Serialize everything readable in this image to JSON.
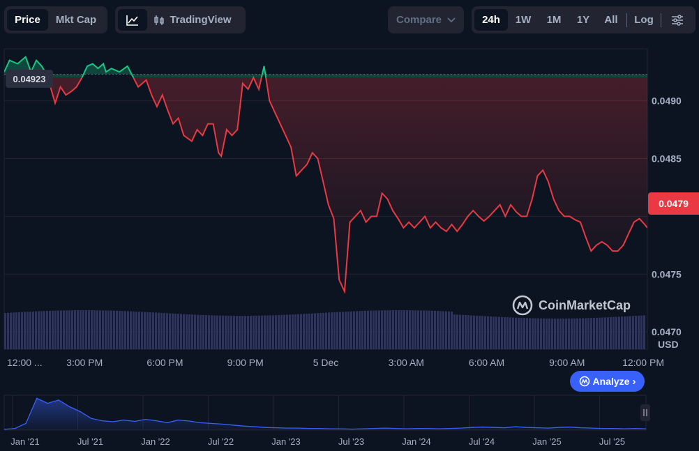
{
  "toolbar": {
    "tabs": [
      "Price",
      "Mkt Cap"
    ],
    "active_tab": "Price",
    "tradingview_label": "TradingView",
    "compare_label": "Compare",
    "ranges": [
      "24h",
      "1W",
      "1M",
      "1Y",
      "All"
    ],
    "active_range": "24h",
    "log_label": "Log"
  },
  "badges": {
    "current_price": "0.0479",
    "reference_price": "0.04923"
  },
  "watermark": "CoinMarketCap",
  "analyze_label": "Analyze",
  "currency_label": "USD",
  "colors": {
    "background": "#0d1421",
    "up": "#16c784",
    "down": "#ea3943",
    "accent": "#3861fb",
    "volume": "#2e3558"
  },
  "chart_data": {
    "type": "line",
    "ylim": [
      0.04685,
      0.04945
    ],
    "yticks": [
      0.049,
      0.0485,
      0.048,
      0.0475,
      0.047
    ],
    "ytick_labels": [
      "0.0490",
      "0.0485",
      "",
      "0.0475",
      "0.0470"
    ],
    "xtick_labels": [
      "12:00 ...",
      "3:00 PM",
      "6:00 PM",
      "9:00 PM",
      "5 Dec",
      "3:00 AM",
      "6:00 AM",
      "9:00 AM",
      "12:00 PM"
    ],
    "xtick_hours": [
      0,
      3,
      6,
      9,
      12,
      15,
      18,
      21,
      24
    ],
    "reference_price": 0.04923,
    "current_price": 0.0479,
    "series": [
      {
        "x_hours": [
          0.0,
          0.2,
          0.5,
          0.8,
          1.0,
          1.2,
          1.4,
          1.6,
          1.9,
          2.1,
          2.3,
          2.5,
          2.7,
          2.9,
          3.1,
          3.3,
          3.5,
          3.7,
          3.8,
          4.0,
          4.3,
          4.6,
          5.0,
          5.3,
          5.5,
          5.7,
          5.9,
          6.1,
          6.3,
          6.5,
          6.7,
          7.0,
          7.2,
          7.4,
          7.6,
          7.8,
          8.0,
          8.1,
          8.3,
          8.5,
          8.7,
          8.9,
          9.1,
          9.3,
          9.5,
          9.7,
          9.9,
          10.1,
          10.3,
          10.5,
          10.7,
          10.9,
          11.1,
          11.3,
          11.5,
          11.7,
          11.9,
          12.1,
          12.3,
          12.5,
          12.7,
          12.9,
          13.1,
          13.3,
          13.5,
          13.7,
          13.9,
          14.1,
          14.3,
          14.5,
          14.7,
          14.9,
          15.1,
          15.3,
          15.5,
          15.7,
          15.9,
          16.1,
          16.3,
          16.5,
          16.7,
          16.9,
          17.1,
          17.3,
          17.5,
          17.7,
          17.9,
          18.1,
          18.3,
          18.5,
          18.7,
          18.9,
          19.1,
          19.3,
          19.5,
          19.7,
          19.9,
          20.1,
          20.3,
          20.5,
          20.7,
          20.9,
          21.1,
          21.3,
          21.5,
          21.7,
          21.9,
          22.1,
          22.3,
          22.5,
          22.7,
          22.9,
          23.1,
          23.3,
          23.5,
          23.7,
          23.9,
          24.0
        ],
        "y": [
          0.04925,
          0.04935,
          0.04932,
          0.04938,
          0.04925,
          0.04935,
          0.0493,
          0.04922,
          0.04898,
          0.04912,
          0.04905,
          0.04908,
          0.04912,
          0.0492,
          0.0493,
          0.04932,
          0.04928,
          0.04932,
          0.04925,
          0.04928,
          0.04925,
          0.0493,
          0.04912,
          0.04918,
          0.04905,
          0.04895,
          0.04905,
          0.04892,
          0.0488,
          0.04885,
          0.0487,
          0.04865,
          0.04875,
          0.0487,
          0.0488,
          0.0488,
          0.04855,
          0.04852,
          0.04875,
          0.0487,
          0.04875,
          0.04915,
          0.0491,
          0.0492,
          0.0491,
          0.0493,
          0.049,
          0.0489,
          0.0488,
          0.0487,
          0.0486,
          0.04835,
          0.0484,
          0.04845,
          0.04855,
          0.0485,
          0.0483,
          0.0481,
          0.04798,
          0.04745,
          0.04735,
          0.04795,
          0.048,
          0.04805,
          0.04795,
          0.048,
          0.048,
          0.0482,
          0.04815,
          0.04805,
          0.04798,
          0.0479,
          0.04795,
          0.0479,
          0.04795,
          0.048,
          0.0479,
          0.04795,
          0.0479,
          0.04787,
          0.04793,
          0.04787,
          0.04793,
          0.048,
          0.04805,
          0.048,
          0.04796,
          0.048,
          0.04805,
          0.0481,
          0.048,
          0.0481,
          0.04804,
          0.048,
          0.048,
          0.04815,
          0.04835,
          0.0484,
          0.0483,
          0.04815,
          0.04805,
          0.048,
          0.048,
          0.04797,
          0.04795,
          0.04782,
          0.0477,
          0.04775,
          0.04778,
          0.04775,
          0.0477,
          0.0477,
          0.04775,
          0.04785,
          0.04795,
          0.04798,
          0.04793,
          0.0479
        ]
      }
    ],
    "navigator": {
      "xtick_labels": [
        "Jan '21",
        "Jul '21",
        "Jan '22",
        "Jul '22",
        "Jan '23",
        "Jul '23",
        "Jan '24",
        "Jul '24",
        "Jan '25",
        "Jul '25"
      ],
      "values": [
        0.02,
        0.05,
        0.2,
        0.95,
        0.8,
        0.9,
        0.7,
        0.55,
        0.35,
        0.28,
        0.25,
        0.3,
        0.26,
        0.32,
        0.28,
        0.22,
        0.3,
        0.27,
        0.22,
        0.2,
        0.18,
        0.15,
        0.12,
        0.1,
        0.08,
        0.07,
        0.06,
        0.06,
        0.05,
        0.05,
        0.04,
        0.04,
        0.03,
        0.04,
        0.05,
        0.06,
        0.05,
        0.04,
        0.05,
        0.05,
        0.04,
        0.05,
        0.06,
        0.08,
        0.09,
        0.08,
        0.07,
        0.1,
        0.08,
        0.07,
        0.06,
        0.08,
        0.09,
        0.07,
        0.06,
        0.05,
        0.05,
        0.04,
        0.05,
        0.04
      ]
    }
  }
}
